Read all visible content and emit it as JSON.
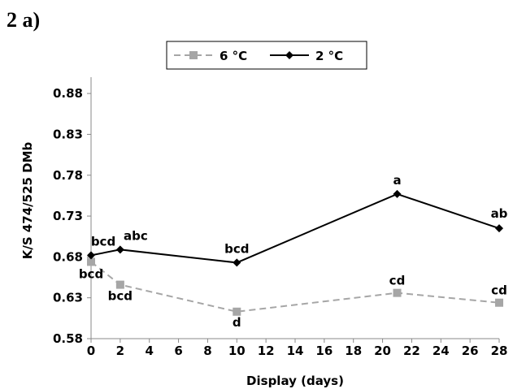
{
  "panel_label": "2 a)",
  "chart_data": {
    "type": "line",
    "xlabel": "Display (days)",
    "ylabel": "K/S 474/525 DMb",
    "xlim": [
      0,
      28
    ],
    "ylim": [
      0.58,
      0.9
    ],
    "x_ticks": [
      "0",
      "2",
      "4",
      "6",
      "8",
      "10",
      "12",
      "14",
      "16",
      "18",
      "20",
      "22",
      "24",
      "26",
      "28"
    ],
    "y_ticks": [
      "0.58",
      "0.63",
      "0.68",
      "0.73",
      "0.78",
      "0.83",
      "0.88"
    ],
    "grid": false,
    "legend_position": "top-center",
    "series": [
      {
        "name": "6 °C",
        "color": "#a6a6a6",
        "line_style": "dashed",
        "marker": "square",
        "points": [
          {
            "x": 0,
            "y": 0.674,
            "label": "bcd"
          },
          {
            "x": 2,
            "y": 0.646,
            "label": "bcd"
          },
          {
            "x": 10,
            "y": 0.613,
            "label": "d"
          },
          {
            "x": 21,
            "y": 0.636,
            "label": "cd"
          },
          {
            "x": 28,
            "y": 0.624,
            "label": "cd"
          }
        ]
      },
      {
        "name": "2 °C",
        "color": "#000000",
        "line_style": "solid",
        "marker": "diamond",
        "points": [
          {
            "x": 0,
            "y": 0.682,
            "label": "bcd"
          },
          {
            "x": 2,
            "y": 0.689,
            "label": "abc"
          },
          {
            "x": 10,
            "y": 0.673,
            "label": "bcd"
          },
          {
            "x": 21,
            "y": 0.757,
            "label": "a"
          },
          {
            "x": 28,
            "y": 0.715,
            "label": "ab"
          }
        ]
      }
    ]
  }
}
